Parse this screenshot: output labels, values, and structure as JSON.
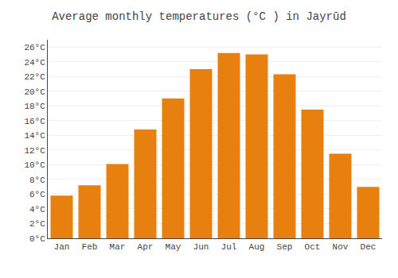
{
  "chart_data": {
    "type": "bar",
    "title": "Average monthly temperatures (°C ) in Jayrūd",
    "categories": [
      "Jan",
      "Feb",
      "Mar",
      "Apr",
      "May",
      "Jun",
      "Jul",
      "Aug",
      "Sep",
      "Oct",
      "Nov",
      "Dec"
    ],
    "values": [
      5.8,
      7.2,
      10.1,
      14.8,
      19.0,
      23.0,
      25.2,
      25.0,
      22.3,
      17.5,
      11.5,
      7.0
    ],
    "color": "#E88010",
    "ylim": [
      0,
      27
    ],
    "yticks": [
      {
        "value": 0,
        "label": "0°C"
      },
      {
        "value": 2,
        "label": "2°C"
      },
      {
        "value": 4,
        "label": "4°C"
      },
      {
        "value": 6,
        "label": "6°C"
      },
      {
        "value": 8,
        "label": "8°C"
      },
      {
        "value": 10,
        "label": "10°C"
      },
      {
        "value": 12,
        "label": "12°C"
      },
      {
        "value": 14,
        "label": "14°C"
      },
      {
        "value": 16,
        "label": "16°C"
      },
      {
        "value": 18,
        "label": "18°C"
      },
      {
        "value": 20,
        "label": "20°C"
      },
      {
        "value": 22,
        "label": "22°C"
      },
      {
        "value": 24,
        "label": "24°C"
      },
      {
        "value": 26,
        "label": "26°C"
      }
    ],
    "grid": true
  }
}
